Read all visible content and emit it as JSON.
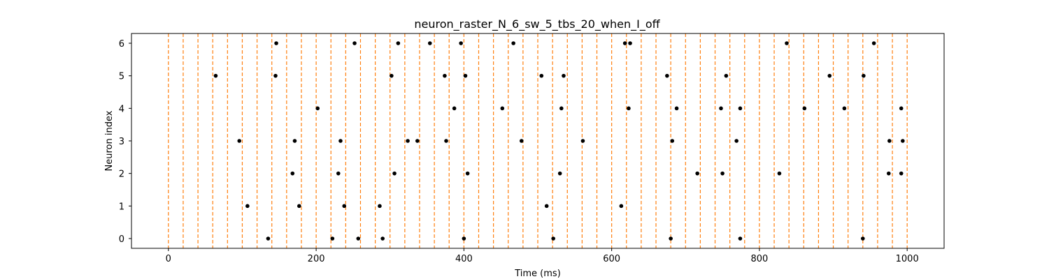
{
  "chart_data": {
    "type": "scatter",
    "title": "neuron_raster_N_6_sw_5_tbs_20_when_I_off",
    "xlabel": "Time (ms)",
    "ylabel": "Neuron index",
    "xlim": [
      -50,
      1050
    ],
    "ylim": [
      -0.3,
      6.3
    ],
    "xticks": [
      0,
      200,
      400,
      600,
      800,
      1000
    ],
    "yticks": [
      0,
      1,
      2,
      3,
      4,
      5,
      6
    ],
    "grid": false,
    "marker_color": "#000000",
    "vline_color": "#ff7f0e",
    "vlines": [
      0,
      20,
      40,
      60,
      80,
      100,
      120,
      140,
      160,
      180,
      200,
      220,
      240,
      260,
      280,
      300,
      320,
      340,
      360,
      380,
      400,
      420,
      440,
      460,
      480,
      500,
      520,
      540,
      560,
      580,
      600,
      620,
      640,
      660,
      680,
      700,
      720,
      740,
      760,
      780,
      800,
      820,
      840,
      860,
      880,
      900,
      920,
      940,
      960,
      980,
      1000
    ],
    "series": [
      {
        "neuron": 0,
        "x": [
          135,
          222,
          257,
          290,
          400,
          521,
          680,
          774,
          940
        ]
      },
      {
        "neuron": 1,
        "x": [
          107,
          177,
          238,
          286,
          512,
          613
        ]
      },
      {
        "neuron": 2,
        "x": [
          168,
          230,
          306,
          405,
          530,
          716,
          750,
          827,
          975,
          992
        ]
      },
      {
        "neuron": 3,
        "x": [
          96,
          171,
          233,
          324,
          337,
          376,
          478,
          561,
          682,
          769,
          976,
          994
        ]
      },
      {
        "neuron": 4,
        "x": [
          202,
          387,
          452,
          532,
          623,
          688,
          748,
          774,
          861,
          915,
          992
        ]
      },
      {
        "neuron": 5,
        "x": [
          64,
          145,
          302,
          374,
          402,
          505,
          535,
          675,
          755,
          895,
          941
        ]
      },
      {
        "neuron": 6,
        "x": [
          146,
          252,
          311,
          354,
          396,
          467,
          618,
          625,
          837,
          955
        ]
      }
    ]
  }
}
